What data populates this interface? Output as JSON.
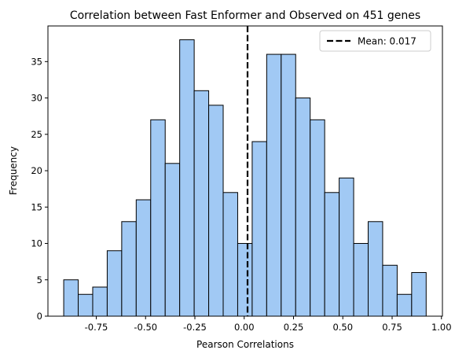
{
  "chart_data": {
    "type": "bar",
    "title": "Correlation between Fast Enformer and Observed on 451 genes",
    "xlabel": "Pearson Correlations",
    "ylabel": "Frequency",
    "xlim": [
      -0.995,
      1.005
    ],
    "ylim": [
      0,
      39.9
    ],
    "bin_start": -0.915,
    "bin_width": 0.0735,
    "series": [
      {
        "values": [
          5,
          3,
          4,
          9,
          13,
          16,
          27,
          21,
          38,
          31,
          29,
          17,
          10,
          24,
          36,
          36,
          30,
          27,
          17,
          19,
          10,
          13,
          7,
          3,
          6
        ],
        "color": "#a1c9f4"
      }
    ],
    "mean_line": {
      "x": 0.017,
      "label": "Mean: 0.017",
      "color": "#000000"
    },
    "xticks": [
      "-0.75",
      "-0.50",
      "-0.25",
      "0.00",
      "0.25",
      "0.50",
      "0.75",
      "1.00"
    ],
    "xtick_values": [
      -0.75,
      -0.5,
      -0.25,
      0,
      0.25,
      0.5,
      0.75,
      1.0
    ],
    "yticks": [
      "0",
      "5",
      "10",
      "15",
      "20",
      "25",
      "30",
      "35"
    ],
    "ytick_values": [
      0,
      5,
      10,
      15,
      20,
      25,
      30,
      35
    ],
    "grid": false,
    "legend": "top-right"
  }
}
